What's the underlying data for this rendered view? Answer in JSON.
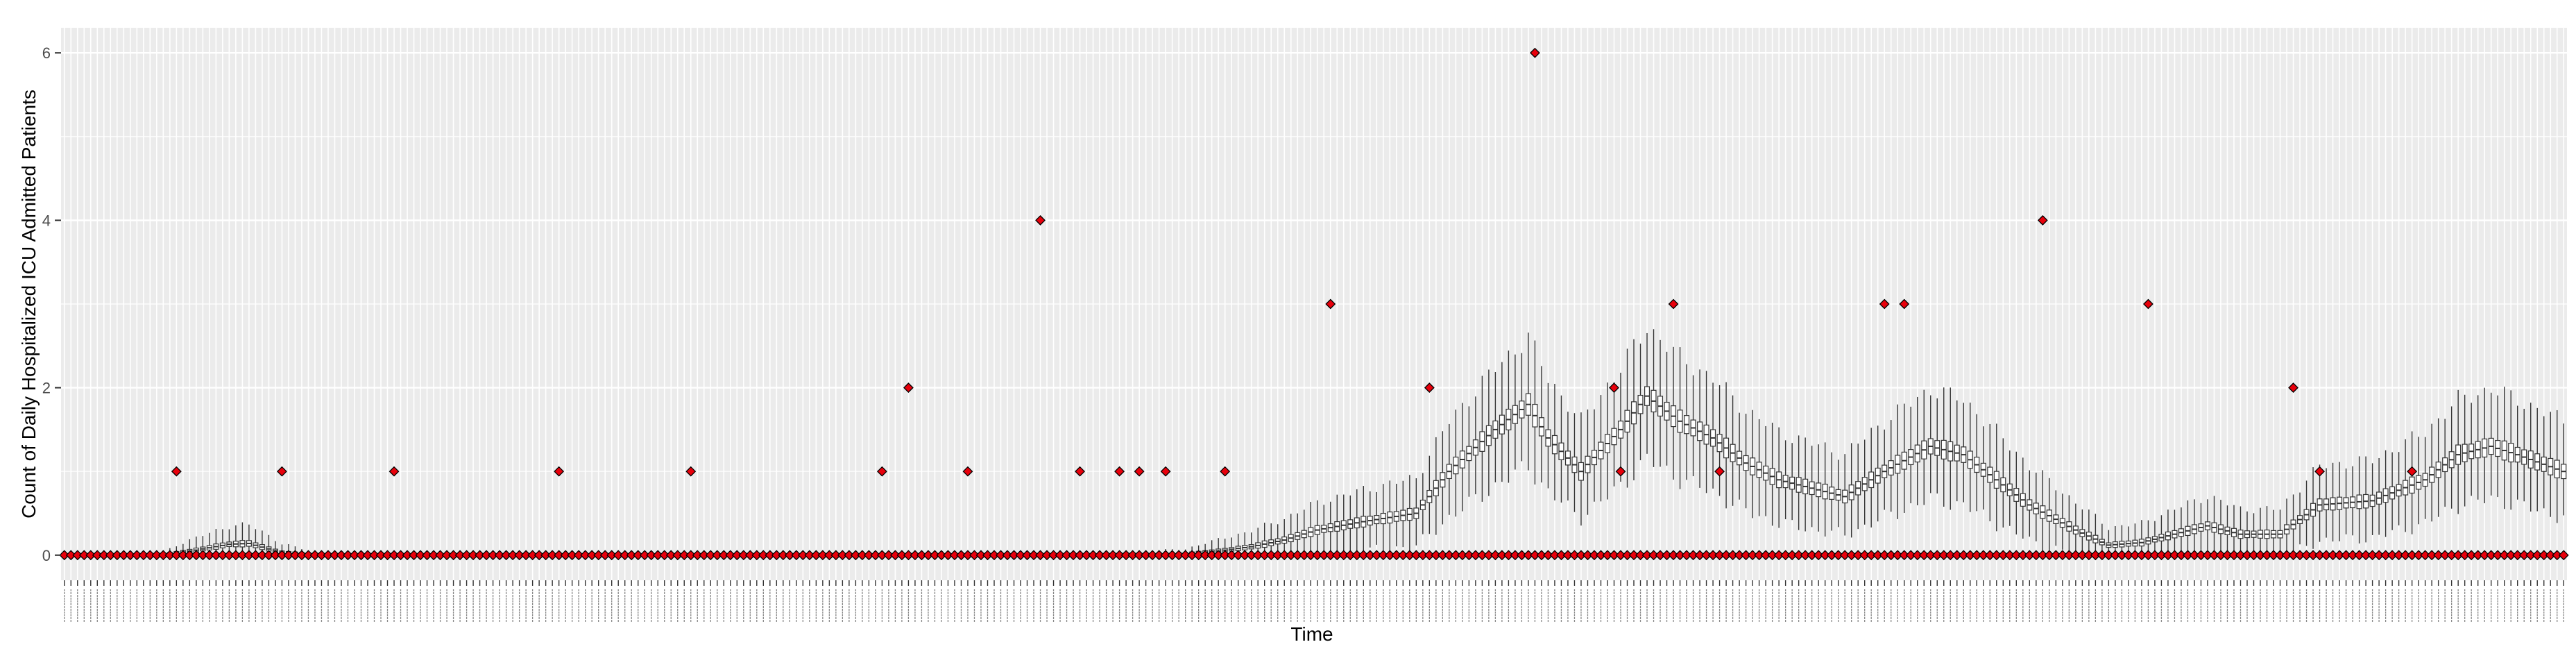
{
  "chart_data": {
    "type": "boxplot",
    "title": "",
    "xlabel": "Time",
    "ylabel": "Count of Daily Hospitalized ICU Admitted Patients",
    "ylim": [
      -0.3,
      6.3
    ],
    "yticks": [
      0,
      2,
      4,
      6
    ],
    "grid": true,
    "legend": "none",
    "n_categories": 380,
    "colors": {
      "panel_bg": "#EBEBEB",
      "grid": "#FFFFFF",
      "point_fill": "#E8000B",
      "point_stroke": "#000000",
      "box": "#333333"
    },
    "median_trend": [
      [
        0,
        0.0
      ],
      [
        15,
        0.0
      ],
      [
        20,
        0.06
      ],
      [
        25,
        0.13
      ],
      [
        28,
        0.14
      ],
      [
        33,
        0.03
      ],
      [
        38,
        0.0
      ],
      [
        100,
        0.0
      ],
      [
        150,
        0.0
      ],
      [
        160,
        0.005
      ],
      [
        170,
        0.01
      ],
      [
        175,
        0.05
      ],
      [
        180,
        0.1
      ],
      [
        185,
        0.18
      ],
      [
        190,
        0.3
      ],
      [
        197,
        0.4
      ],
      [
        205,
        0.5
      ],
      [
        210,
        1.0
      ],
      [
        217,
        1.5
      ],
      [
        222,
        1.8
      ],
      [
        225,
        1.4
      ],
      [
        230,
        1.0
      ],
      [
        236,
        1.5
      ],
      [
        240,
        1.9
      ],
      [
        245,
        1.6
      ],
      [
        250,
        1.4
      ],
      [
        255,
        1.1
      ],
      [
        260,
        0.9
      ],
      [
        270,
        0.7
      ],
      [
        276,
        1.0
      ],
      [
        283,
        1.3
      ],
      [
        288,
        1.2
      ],
      [
        293,
        0.9
      ],
      [
        298,
        0.6
      ],
      [
        305,
        0.3
      ],
      [
        310,
        0.12
      ],
      [
        315,
        0.15
      ],
      [
        320,
        0.25
      ],
      [
        325,
        0.35
      ],
      [
        330,
        0.25
      ],
      [
        336,
        0.25
      ],
      [
        342,
        0.6
      ],
      [
        350,
        0.65
      ],
      [
        358,
        0.9
      ],
      [
        363,
        1.2
      ],
      [
        368,
        1.3
      ],
      [
        372,
        1.2
      ],
      [
        379,
        1.0
      ]
    ],
    "outliers": [
      {
        "x": 17,
        "y": 1
      },
      {
        "x": 33,
        "y": 1
      },
      {
        "x": 50,
        "y": 1
      },
      {
        "x": 75,
        "y": 1
      },
      {
        "x": 95,
        "y": 1
      },
      {
        "x": 124,
        "y": 1
      },
      {
        "x": 128,
        "y": 2
      },
      {
        "x": 137,
        "y": 1
      },
      {
        "x": 148,
        "y": 4
      },
      {
        "x": 154,
        "y": 1
      },
      {
        "x": 160,
        "y": 1
      },
      {
        "x": 163,
        "y": 1
      },
      {
        "x": 167,
        "y": 1
      },
      {
        "x": 176,
        "y": 1
      },
      {
        "x": 192,
        "y": 3
      },
      {
        "x": 207,
        "y": 2
      },
      {
        "x": 223,
        "y": 6
      },
      {
        "x": 235,
        "y": 2
      },
      {
        "x": 236,
        "y": 1
      },
      {
        "x": 244,
        "y": 3
      },
      {
        "x": 251,
        "y": 1
      },
      {
        "x": 276,
        "y": 3
      },
      {
        "x": 279,
        "y": 3
      },
      {
        "x": 300,
        "y": 4
      },
      {
        "x": 316,
        "y": 3
      },
      {
        "x": 338,
        "y": 2
      },
      {
        "x": 342,
        "y": 1
      },
      {
        "x": 356,
        "y": 1
      }
    ]
  }
}
